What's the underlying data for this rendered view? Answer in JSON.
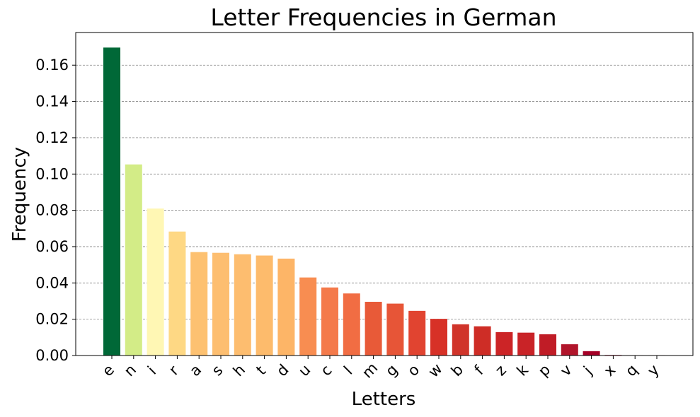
{
  "chart_data": {
    "type": "bar",
    "title": "Letter Frequencies in German",
    "xlabel": "Letters",
    "ylabel": "Frequency",
    "categories": [
      "e",
      "n",
      "i",
      "r",
      "a",
      "s",
      "h",
      "t",
      "d",
      "u",
      "c",
      "l",
      "m",
      "g",
      "o",
      "w",
      "b",
      "f",
      "z",
      "k",
      "p",
      "v",
      "j",
      "x",
      "q",
      "y"
    ],
    "values": [
      0.1697,
      0.1053,
      0.081,
      0.0683,
      0.057,
      0.0566,
      0.0558,
      0.0551,
      0.0534,
      0.043,
      0.0375,
      0.0342,
      0.0296,
      0.0286,
      0.0246,
      0.0202,
      0.0172,
      0.0161,
      0.0129,
      0.0126,
      0.0117,
      0.0062,
      0.0024,
      0.0003,
      0.0002,
      0.0002
    ],
    "colors": [
      "#006837",
      "#d3ec87",
      "#fff7b4",
      "#fed884",
      "#fdc171",
      "#fdbe70",
      "#fdbd6f",
      "#fdbb6c",
      "#fdb567",
      "#f88d51",
      "#f47a4b",
      "#f16d43",
      "#e85a38",
      "#e75537",
      "#e14430",
      "#d73127",
      "#d0342a",
      "#ce2d26",
      "#cc2426",
      "#c92327",
      "#c01c26",
      "#b1152b",
      "#a50026",
      "#a50026",
      "#a50026",
      "#a50026"
    ],
    "yticks": [
      "0.00",
      "0.02",
      "0.04",
      "0.06",
      "0.08",
      "0.10",
      "0.12",
      "0.14",
      "0.16"
    ],
    "ylim": [
      0,
      0.178
    ],
    "grid": "y-dashed"
  }
}
